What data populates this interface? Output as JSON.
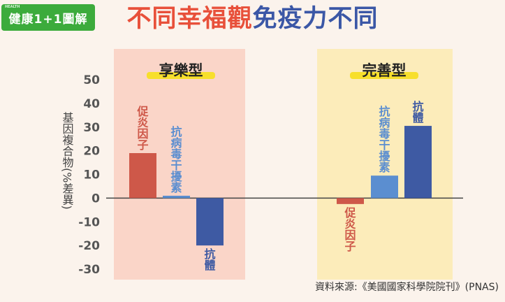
{
  "logo": {
    "small": "HEALTH",
    "text": "健康1+1圖解"
  },
  "title": {
    "part1": "不同幸福觀",
    "part2": "免疫力不同"
  },
  "source": "資料來源:《美國國家科學院院刊》(PNAS)",
  "colors": {
    "red": "#ce5849",
    "lightblue": "#5b8ed0",
    "darkblue": "#3e5aa3",
    "panelA": "#f9d1c4",
    "panelB": "#fcebb5",
    "highlight": "#f7df2c"
  },
  "chart_data": {
    "type": "bar",
    "ylabel": "基因複合物(%差異)",
    "ylim": [
      -30,
      50
    ],
    "yticks": [
      50,
      40,
      30,
      20,
      10,
      0,
      -10,
      -20,
      -30
    ],
    "grid": false,
    "groups": [
      {
        "name": "享樂型",
        "bars": [
          {
            "label": "促炎因子",
            "value": 19,
            "color": "#ce5849"
          },
          {
            "label": "抗病毒干擾素",
            "value": 1,
            "color": "#5b8ed0"
          },
          {
            "label": "抗體",
            "value": -20,
            "color": "#3e5aa3"
          }
        ]
      },
      {
        "name": "完善型",
        "bars": [
          {
            "label": "促炎因子",
            "value": -2.5,
            "color": "#ce5849"
          },
          {
            "label": "抗病毒干擾素",
            "value": 9.5,
            "color": "#5b8ed0"
          },
          {
            "label": "抗體",
            "value": 30.5,
            "color": "#3e5aa3"
          }
        ]
      }
    ]
  }
}
